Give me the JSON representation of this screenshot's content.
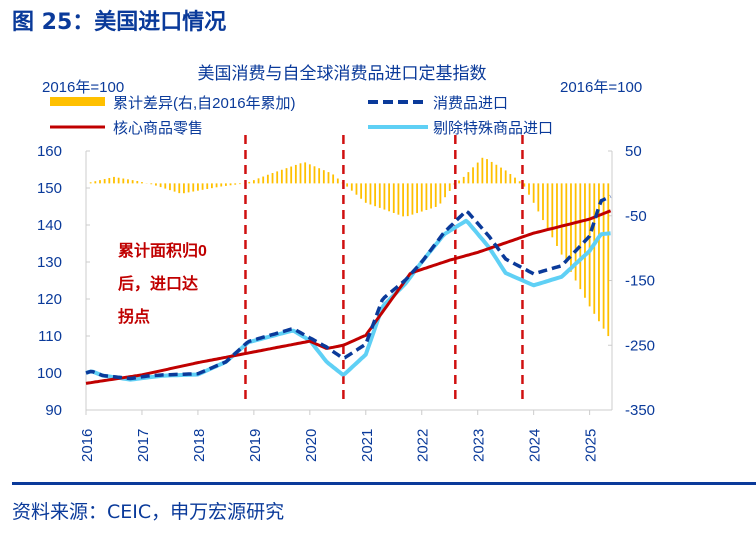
{
  "figure_title": "图 25：美国进口情况",
  "source": "资料来源：CEIC，申万宏源研究",
  "chart_data": {
    "type": "line",
    "title": "美国消费与自全球消费品进口定基指数",
    "left_axis_label": "2016年=100",
    "right_axis_label": "2016年=100",
    "annotation": [
      "累计面积归0",
      "后，进口达",
      "拐点"
    ],
    "xlim": [
      2016,
      2025.4
    ],
    "x_ticks": [
      "2016",
      "2017",
      "2018",
      "2019",
      "2020",
      "2021",
      "2022",
      "2023",
      "2024",
      "2025"
    ],
    "ylim_left": [
      90,
      160
    ],
    "y_ticks_left": [
      "160",
      "150",
      "140",
      "130",
      "120",
      "110",
      "100",
      "90"
    ],
    "ylim_right": [
      -350,
      50
    ],
    "y_ticks_right": [
      "50",
      "-50",
      "-150",
      "-250",
      "-350"
    ],
    "vlines": [
      2018.85,
      2020.6,
      2022.6,
      2023.8
    ],
    "colors": {
      "bars": "#ffc000",
      "core": "#c00000",
      "consumer": "#0a3a9a",
      "excl": "#5fd0f5",
      "vline": "#d01010",
      "axis_text": "#0a3a9a"
    },
    "series": [
      {
        "name": "累计差异(右,自2016年累加)",
        "type": "bar",
        "axis": "right",
        "points": [
          [
            2016,
            0
          ],
          [
            2016.5,
            10
          ],
          [
            2016.9,
            4
          ],
          [
            2017.2,
            -2
          ],
          [
            2017.7,
            -16
          ],
          [
            2018.4,
            -5
          ],
          [
            2018.85,
            0
          ],
          [
            2019.3,
            15
          ],
          [
            2019.9,
            33
          ],
          [
            2020.4,
            15
          ],
          [
            2020.6,
            0
          ],
          [
            2021.0,
            -30
          ],
          [
            2021.7,
            -52
          ],
          [
            2022.3,
            -35
          ],
          [
            2022.6,
            0
          ],
          [
            2022.75,
            10
          ],
          [
            2023.1,
            41
          ],
          [
            2023.5,
            20
          ],
          [
            2023.8,
            0
          ],
          [
            2024.0,
            -30
          ],
          [
            2024.5,
            -110
          ],
          [
            2025.0,
            -190
          ],
          [
            2025.4,
            -245
          ]
        ]
      },
      {
        "name": "消费品进口",
        "type": "dashed",
        "axis": "left",
        "points": [
          [
            2016,
            100
          ],
          [
            2016.1,
            100.5
          ],
          [
            2016.3,
            99.3
          ],
          [
            2016.8,
            98.5
          ],
          [
            2017.1,
            99.2
          ],
          [
            2017.4,
            99.5
          ],
          [
            2018,
            99.8
          ],
          [
            2018.5,
            103
          ],
          [
            2018.9,
            108.5
          ],
          [
            2019.7,
            112
          ],
          [
            2020,
            109.5
          ],
          [
            2020.3,
            107
          ],
          [
            2020.6,
            103.9
          ],
          [
            2021,
            107.8
          ],
          [
            2021.3,
            120
          ],
          [
            2021.7,
            125
          ],
          [
            2022,
            130
          ],
          [
            2022.4,
            138
          ],
          [
            2022.8,
            143.9
          ],
          [
            2023.2,
            137
          ],
          [
            2023.5,
            130.8
          ],
          [
            2024,
            126.8
          ],
          [
            2024.5,
            129
          ],
          [
            2025,
            137
          ],
          [
            2025.2,
            146.5
          ],
          [
            2025.4,
            147.9
          ]
        ]
      },
      {
        "name": "核心商品零售",
        "type": "line",
        "axis": "left",
        "points": [
          [
            2016,
            97.2
          ],
          [
            2017,
            99.5
          ],
          [
            2018,
            102.8
          ],
          [
            2019,
            105.7
          ],
          [
            2020,
            108.6
          ],
          [
            2020.3,
            106.6
          ],
          [
            2020.6,
            107.5
          ],
          [
            2021,
            110.2
          ],
          [
            2021.8,
            127
          ],
          [
            2022.5,
            130.5
          ],
          [
            2023,
            132.6
          ],
          [
            2024,
            137.8
          ],
          [
            2025,
            141.6
          ],
          [
            2025.4,
            144
          ]
        ]
      },
      {
        "name": "剔除特殊商品进口",
        "type": "line",
        "axis": "left",
        "points": [
          [
            2016,
            100
          ],
          [
            2016.1,
            100.5
          ],
          [
            2016.3,
            99.3
          ],
          [
            2016.8,
            98.2
          ],
          [
            2017.1,
            98.8
          ],
          [
            2017.4,
            99.3
          ],
          [
            2018,
            99.6
          ],
          [
            2018.5,
            103
          ],
          [
            2018.9,
            108.3
          ],
          [
            2019.7,
            111.5
          ],
          [
            2020,
            108.8
          ],
          [
            2020.3,
            103
          ],
          [
            2020.6,
            99.4
          ],
          [
            2021,
            105
          ],
          [
            2021.3,
            118
          ],
          [
            2021.7,
            124
          ],
          [
            2022,
            130
          ],
          [
            2022.4,
            137.5
          ],
          [
            2022.8,
            141.2
          ],
          [
            2023.2,
            134
          ],
          [
            2023.5,
            127
          ],
          [
            2024,
            123.7
          ],
          [
            2024.5,
            126
          ],
          [
            2025,
            133
          ],
          [
            2025.2,
            137.5
          ],
          [
            2025.4,
            137.8
          ]
        ]
      }
    ]
  }
}
